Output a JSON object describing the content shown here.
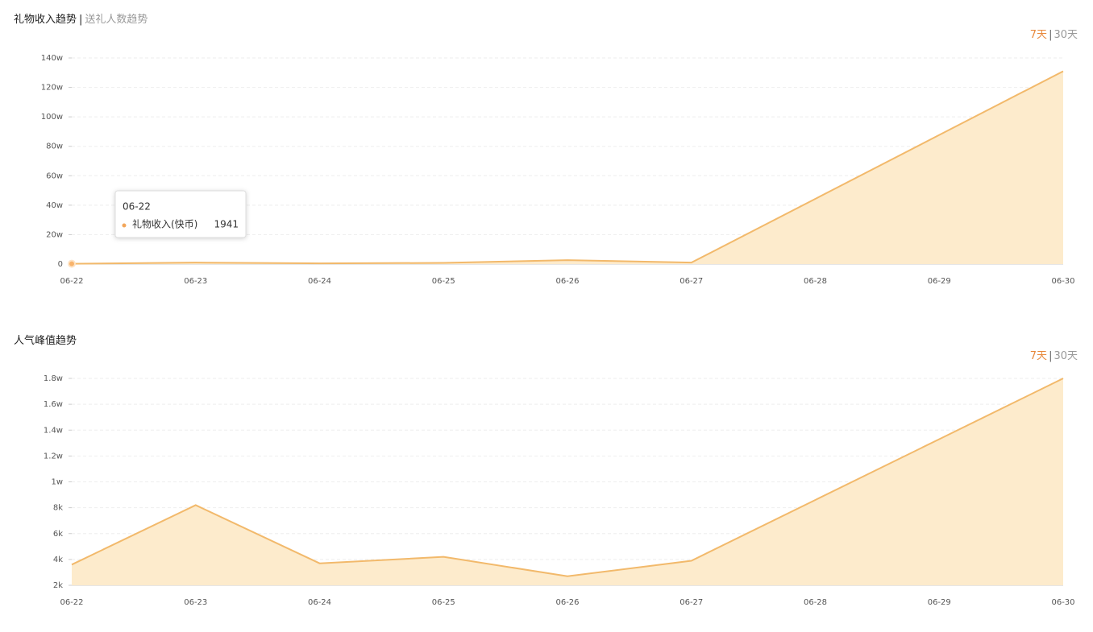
{
  "chart_data": [
    {
      "type": "area",
      "title": "礼物收入趋势",
      "title_separator": "|",
      "subtitle": "送礼人数趋势",
      "tabs": [
        "7天",
        "30天"
      ],
      "tab_separator": "|",
      "categories": [
        "06-22",
        "06-23",
        "06-24",
        "06-25",
        "06-26",
        "06-27",
        "06-28",
        "06-29",
        "06-30"
      ],
      "series": [
        {
          "name": "礼物收入(快币)",
          "color": "#f2b96b",
          "fill": "#fdebcc",
          "values": [
            1941,
            10000,
            5000,
            8000,
            27000,
            10000,
            443000,
            877000,
            1310000
          ]
        }
      ],
      "ylim": [
        0,
        1400000
      ],
      "yticks": [
        0,
        {
          "value": 200000,
          "label": "20w"
        },
        {
          "value": 400000,
          "label": "40w"
        },
        {
          "value": 600000,
          "label": "60w"
        },
        {
          "value": 800000,
          "label": "80w"
        },
        {
          "value": 1000000,
          "label": "100w"
        },
        {
          "value": 1200000,
          "label": "120w"
        },
        {
          "value": 1400000,
          "label": "140w"
        }
      ],
      "grid": true
    },
    {
      "type": "area",
      "title": "人气峰值趋势",
      "tabs": [
        "7天",
        "30天"
      ],
      "tab_separator": "|",
      "categories": [
        "06-22",
        "06-23",
        "06-24",
        "06-25",
        "06-26",
        "06-27",
        "06-28",
        "06-29",
        "06-30"
      ],
      "series": [
        {
          "color": "#f2b96b",
          "fill": "#fdebcc",
          "values": [
            3600,
            8200,
            3700,
            4200,
            2700,
            3900,
            8600,
            13300,
            18000
          ]
        }
      ],
      "ylim": [
        2000,
        18000
      ],
      "yticks": [
        {
          "value": 2000,
          "label": "2k"
        },
        {
          "value": 4000,
          "label": "4k"
        },
        {
          "value": 6000,
          "label": "6k"
        },
        {
          "value": 8000,
          "label": "8k"
        },
        {
          "value": 10000,
          "label": "1w"
        },
        {
          "value": 12000,
          "label": "1.2w"
        },
        {
          "value": 14000,
          "label": "1.4w"
        },
        {
          "value": 16000,
          "label": "1.6w"
        },
        {
          "value": 18000,
          "label": "1.8w"
        }
      ],
      "grid": true
    }
  ]
}
